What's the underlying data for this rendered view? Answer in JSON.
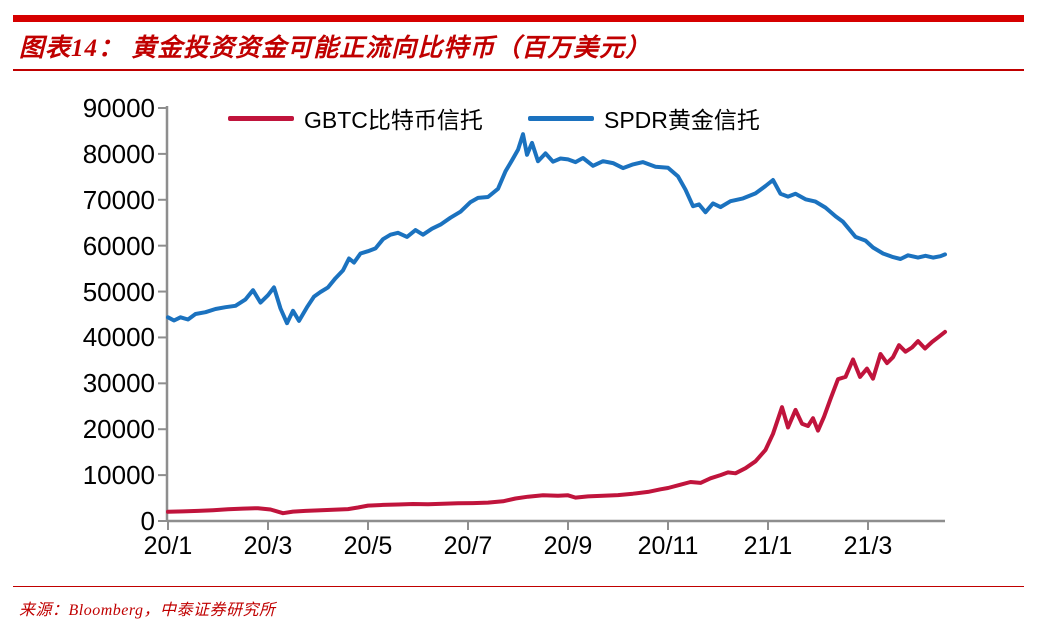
{
  "header": {
    "title": "图表14： 黄金投资资金可能正流向比特币（百万美元）"
  },
  "footer": {
    "source": "来源：Bloomberg，中泰证券研究所"
  },
  "colors": {
    "top_bar_red": "#d60000",
    "accent_red": "#c00000",
    "axis_gray": "#8e8e8e",
    "gbtc_red": "#c0143c",
    "spdr_blue": "#1b72bf",
    "label_black": "#000000"
  },
  "chart_data": {
    "type": "line",
    "title": "黄金投资资金可能正流向比特币（百万美元）",
    "xlabel": "",
    "ylabel": "",
    "unit": "百万美元",
    "grid": false,
    "legend_position": "top",
    "ylim": [
      0,
      90000
    ],
    "ytick_step": 10000,
    "y_tick_labels": [
      "0",
      "10000",
      "20000",
      "30000",
      "40000",
      "50000",
      "60000",
      "70000",
      "80000",
      "90000"
    ],
    "x_max_month": 15.54,
    "x_ticks": [
      {
        "label": "20/1",
        "month": 0
      },
      {
        "label": "20/3",
        "month": 2
      },
      {
        "label": "20/5",
        "month": 4
      },
      {
        "label": "20/7",
        "month": 6
      },
      {
        "label": "20/9",
        "month": 8
      },
      {
        "label": "20/11",
        "month": 10
      },
      {
        "label": "21/1",
        "month": 12
      },
      {
        "label": "21/3",
        "month": 14
      }
    ],
    "series": [
      {
        "name": "GBTC比特币信托",
        "color": "#c0143c",
        "points": [
          [
            0,
            2000
          ],
          [
            0.3,
            2100
          ],
          [
            0.6,
            2200
          ],
          [
            0.9,
            2350
          ],
          [
            1.2,
            2550
          ],
          [
            1.5,
            2700
          ],
          [
            1.8,
            2800
          ],
          [
            2.05,
            2500
          ],
          [
            2.3,
            1700
          ],
          [
            2.5,
            2050
          ],
          [
            2.75,
            2200
          ],
          [
            3.0,
            2300
          ],
          [
            3.3,
            2450
          ],
          [
            3.6,
            2600
          ],
          [
            3.8,
            2950
          ],
          [
            4.0,
            3350
          ],
          [
            4.3,
            3500
          ],
          [
            4.6,
            3600
          ],
          [
            4.9,
            3700
          ],
          [
            5.2,
            3650
          ],
          [
            5.5,
            3750
          ],
          [
            5.8,
            3850
          ],
          [
            6.1,
            3900
          ],
          [
            6.4,
            4000
          ],
          [
            6.7,
            4300
          ],
          [
            6.95,
            4900
          ],
          [
            7.2,
            5300
          ],
          [
            7.5,
            5600
          ],
          [
            7.8,
            5500
          ],
          [
            8.0,
            5600
          ],
          [
            8.15,
            5100
          ],
          [
            8.4,
            5350
          ],
          [
            8.7,
            5500
          ],
          [
            9.0,
            5650
          ],
          [
            9.3,
            5950
          ],
          [
            9.6,
            6350
          ],
          [
            9.85,
            6900
          ],
          [
            10.0,
            7200
          ],
          [
            10.25,
            7900
          ],
          [
            10.45,
            8500
          ],
          [
            10.65,
            8300
          ],
          [
            10.85,
            9300
          ],
          [
            11.05,
            10000
          ],
          [
            11.2,
            10600
          ],
          [
            11.35,
            10400
          ],
          [
            11.55,
            11500
          ],
          [
            11.75,
            13000
          ],
          [
            11.95,
            15500
          ],
          [
            12.1,
            19000
          ],
          [
            12.28,
            24800
          ],
          [
            12.4,
            20400
          ],
          [
            12.55,
            24200
          ],
          [
            12.68,
            21200
          ],
          [
            12.8,
            20700
          ],
          [
            12.9,
            22400
          ],
          [
            13.0,
            19700
          ],
          [
            13.12,
            22700
          ],
          [
            13.25,
            26600
          ],
          [
            13.4,
            30900
          ],
          [
            13.55,
            31400
          ],
          [
            13.7,
            35200
          ],
          [
            13.84,
            31400
          ],
          [
            13.98,
            33200
          ],
          [
            14.1,
            31000
          ],
          [
            14.25,
            36400
          ],
          [
            14.38,
            34400
          ],
          [
            14.5,
            35700
          ],
          [
            14.62,
            38300
          ],
          [
            14.75,
            36900
          ],
          [
            14.88,
            37800
          ],
          [
            15.0,
            39200
          ],
          [
            15.14,
            37600
          ],
          [
            15.28,
            39000
          ],
          [
            15.4,
            40000
          ],
          [
            15.54,
            41200
          ]
        ]
      },
      {
        "name": "SPDR黄金信托",
        "color": "#1b72bf",
        "points": [
          [
            0,
            44400
          ],
          [
            0.12,
            43700
          ],
          [
            0.25,
            44400
          ],
          [
            0.4,
            43900
          ],
          [
            0.55,
            45100
          ],
          [
            0.75,
            45500
          ],
          [
            0.95,
            46200
          ],
          [
            1.15,
            46600
          ],
          [
            1.35,
            46900
          ],
          [
            1.55,
            48300
          ],
          [
            1.7,
            50300
          ],
          [
            1.85,
            47600
          ],
          [
            2.0,
            49200
          ],
          [
            2.12,
            50900
          ],
          [
            2.25,
            46300
          ],
          [
            2.38,
            43100
          ],
          [
            2.5,
            45800
          ],
          [
            2.62,
            43600
          ],
          [
            2.78,
            46600
          ],
          [
            2.92,
            48900
          ],
          [
            3.05,
            49900
          ],
          [
            3.2,
            50900
          ],
          [
            3.35,
            52900
          ],
          [
            3.5,
            54600
          ],
          [
            3.62,
            57200
          ],
          [
            3.72,
            56300
          ],
          [
            3.85,
            58300
          ],
          [
            4.0,
            58800
          ],
          [
            4.15,
            59400
          ],
          [
            4.3,
            61400
          ],
          [
            4.45,
            62400
          ],
          [
            4.6,
            62800
          ],
          [
            4.78,
            61900
          ],
          [
            4.95,
            63400
          ],
          [
            5.1,
            62400
          ],
          [
            5.28,
            63700
          ],
          [
            5.45,
            64600
          ],
          [
            5.65,
            66100
          ],
          [
            5.85,
            67400
          ],
          [
            6.05,
            69500
          ],
          [
            6.2,
            70400
          ],
          [
            6.4,
            70600
          ],
          [
            6.6,
            72400
          ],
          [
            6.75,
            76200
          ],
          [
            6.88,
            78600
          ],
          [
            7.0,
            80900
          ],
          [
            7.1,
            84300
          ],
          [
            7.18,
            79800
          ],
          [
            7.28,
            82400
          ],
          [
            7.4,
            78400
          ],
          [
            7.55,
            80100
          ],
          [
            7.7,
            78300
          ],
          [
            7.85,
            79000
          ],
          [
            8.0,
            78800
          ],
          [
            8.15,
            78200
          ],
          [
            8.3,
            79100
          ],
          [
            8.5,
            77400
          ],
          [
            8.7,
            78400
          ],
          [
            8.9,
            78000
          ],
          [
            9.1,
            76900
          ],
          [
            9.3,
            77700
          ],
          [
            9.5,
            78200
          ],
          [
            9.75,
            77200
          ],
          [
            10.0,
            77000
          ],
          [
            10.2,
            75100
          ],
          [
            10.35,
            72200
          ],
          [
            10.5,
            68600
          ],
          [
            10.62,
            69000
          ],
          [
            10.75,
            67300
          ],
          [
            10.9,
            69200
          ],
          [
            11.05,
            68400
          ],
          [
            11.25,
            69700
          ],
          [
            11.5,
            70300
          ],
          [
            11.75,
            71400
          ],
          [
            11.95,
            73000
          ],
          [
            12.1,
            74300
          ],
          [
            12.25,
            71300
          ],
          [
            12.4,
            70700
          ],
          [
            12.55,
            71300
          ],
          [
            12.75,
            70100
          ],
          [
            12.95,
            69600
          ],
          [
            13.15,
            68300
          ],
          [
            13.35,
            66400
          ],
          [
            13.5,
            65200
          ],
          [
            13.6,
            63900
          ],
          [
            13.75,
            61900
          ],
          [
            13.95,
            61100
          ],
          [
            14.1,
            59600
          ],
          [
            14.3,
            58300
          ],
          [
            14.5,
            57500
          ],
          [
            14.65,
            57100
          ],
          [
            14.8,
            57900
          ],
          [
            15.0,
            57400
          ],
          [
            15.15,
            57800
          ],
          [
            15.3,
            57400
          ],
          [
            15.45,
            57700
          ],
          [
            15.54,
            58100
          ]
        ]
      }
    ]
  }
}
